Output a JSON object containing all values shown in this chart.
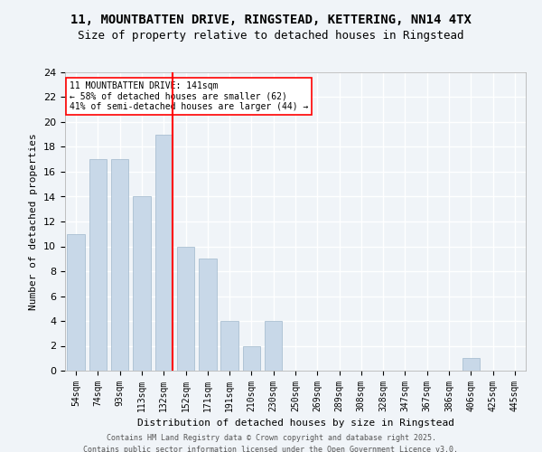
{
  "title_line1": "11, MOUNTBATTEN DRIVE, RINGSTEAD, KETTERING, NN14 4TX",
  "title_line2": "Size of property relative to detached houses in Ringstead",
  "xlabel": "Distribution of detached houses by size in Ringstead",
  "ylabel": "Number of detached properties",
  "bar_labels": [
    "54sqm",
    "74sqm",
    "93sqm",
    "113sqm",
    "132sqm",
    "152sqm",
    "171sqm",
    "191sqm",
    "210sqm",
    "230sqm",
    "250sqm",
    "269sqm",
    "289sqm",
    "308sqm",
    "328sqm",
    "347sqm",
    "367sqm",
    "386sqm",
    "406sqm",
    "425sqm",
    "445sqm"
  ],
  "bar_values": [
    11,
    17,
    17,
    14,
    19,
    10,
    9,
    4,
    2,
    4,
    0,
    0,
    0,
    0,
    0,
    0,
    0,
    0,
    1,
    0,
    0
  ],
  "bar_color": "#c8d8e8",
  "bar_edgecolor": "#a0b8cc",
  "property_size": 141,
  "property_bin_index": 4,
  "vline_x": 4,
  "annotation_text": "11 MOUNTBATTEN DRIVE: 141sqm\n← 58% of detached houses are smaller (62)\n41% of semi-detached houses are larger (44) →",
  "ylim": [
    0,
    24
  ],
  "yticks": [
    0,
    2,
    4,
    6,
    8,
    10,
    12,
    14,
    16,
    18,
    20,
    22,
    24
  ],
  "background_color": "#f0f4f8",
  "plot_background": "#f0f4f8",
  "grid_color": "#ffffff",
  "footer_line1": "Contains HM Land Registry data © Crown copyright and database right 2025.",
  "footer_line2": "Contains public sector information licensed under the Open Government Licence v3.0."
}
